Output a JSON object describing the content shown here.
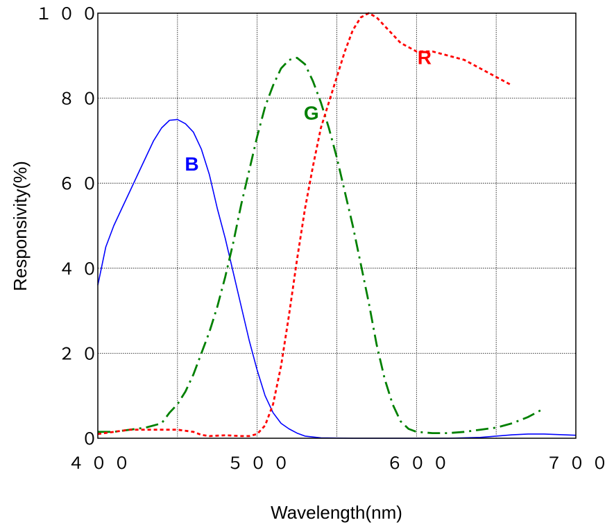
{
  "chart_data": {
    "type": "line",
    "title": "",
    "xlabel": "Wavelength(nm)",
    "ylabel": "Responsivity(%)",
    "xlim": [
      400,
      700
    ],
    "ylim": [
      0,
      100
    ],
    "x_ticks": [
      400,
      500,
      600,
      700
    ],
    "x_tick_labels": [
      "４００",
      "５００",
      "６００",
      "７００"
    ],
    "y_ticks": [
      0,
      20,
      40,
      60,
      80,
      100
    ],
    "y_tick_labels": [
      "０",
      "２０",
      "４０",
      "６０",
      "８０",
      "１００"
    ],
    "grid_x": [
      400,
      450,
      500,
      550,
      600,
      650,
      700
    ],
    "grid_y": [
      0,
      20,
      40,
      60,
      80,
      100
    ],
    "grid": true,
    "series": [
      {
        "name": "B",
        "color": "#0000ff",
        "dash": "solid",
        "label_at": [
          459,
          63
        ],
        "points": [
          [
            400,
            36
          ],
          [
            405,
            45
          ],
          [
            410,
            50
          ],
          [
            415,
            54
          ],
          [
            420,
            58
          ],
          [
            425,
            62
          ],
          [
            430,
            66
          ],
          [
            435,
            70
          ],
          [
            440,
            73
          ],
          [
            445,
            74.8
          ],
          [
            450,
            75
          ],
          [
            455,
            74
          ],
          [
            460,
            72
          ],
          [
            465,
            68
          ],
          [
            470,
            62
          ],
          [
            475,
            54
          ],
          [
            480,
            47
          ],
          [
            485,
            39
          ],
          [
            490,
            31
          ],
          [
            495,
            23
          ],
          [
            500,
            16
          ],
          [
            505,
            10
          ],
          [
            510,
            6
          ],
          [
            515,
            3.5
          ],
          [
            520,
            2.2
          ],
          [
            525,
            1.2
          ],
          [
            530,
            0.5
          ],
          [
            540,
            0.1
          ],
          [
            560,
            0
          ],
          [
            600,
            0
          ],
          [
            620,
            0
          ],
          [
            640,
            0.2
          ],
          [
            660,
            0.8
          ],
          [
            670,
            1
          ],
          [
            680,
            1
          ],
          [
            700,
            0.7
          ]
        ]
      },
      {
        "name": "G",
        "color": "#008000",
        "dash": "dashdot",
        "label_at": [
          534,
          75
        ],
        "points": [
          [
            400,
            1.5
          ],
          [
            410,
            1.5
          ],
          [
            420,
            2
          ],
          [
            430,
            2.5
          ],
          [
            440,
            3.5
          ],
          [
            445,
            6
          ],
          [
            450,
            8
          ],
          [
            455,
            11
          ],
          [
            460,
            15
          ],
          [
            465,
            20
          ],
          [
            470,
            25
          ],
          [
            475,
            31
          ],
          [
            480,
            38
          ],
          [
            485,
            46
          ],
          [
            490,
            55
          ],
          [
            495,
            63
          ],
          [
            500,
            71
          ],
          [
            505,
            78
          ],
          [
            510,
            83
          ],
          [
            515,
            87
          ],
          [
            520,
            89
          ],
          [
            525,
            89.5
          ],
          [
            530,
            88
          ],
          [
            535,
            84
          ],
          [
            540,
            79
          ],
          [
            545,
            73
          ],
          [
            550,
            66
          ],
          [
            555,
            58
          ],
          [
            560,
            50
          ],
          [
            565,
            41
          ],
          [
            570,
            32
          ],
          [
            575,
            22
          ],
          [
            580,
            14
          ],
          [
            585,
            8
          ],
          [
            590,
            4
          ],
          [
            595,
            2.2
          ],
          [
            600,
            1.5
          ],
          [
            610,
            1.2
          ],
          [
            620,
            1.2
          ],
          [
            630,
            1.5
          ],
          [
            640,
            2
          ],
          [
            650,
            2.5
          ],
          [
            660,
            3.5
          ],
          [
            670,
            5
          ],
          [
            680,
            7
          ]
        ]
      },
      {
        "name": "R",
        "color": "#ff0000",
        "dash": "dotted",
        "label_at": [
          605,
          88
        ],
        "points": [
          [
            400,
            1
          ],
          [
            410,
            1.5
          ],
          [
            420,
            2
          ],
          [
            430,
            2
          ],
          [
            440,
            2
          ],
          [
            450,
            2
          ],
          [
            460,
            1.5
          ],
          [
            465,
            0.8
          ],
          [
            470,
            0.5
          ],
          [
            480,
            0.7
          ],
          [
            490,
            0.5
          ],
          [
            495,
            0.5
          ],
          [
            500,
            1
          ],
          [
            505,
            3
          ],
          [
            510,
            8
          ],
          [
            515,
            17
          ],
          [
            520,
            29
          ],
          [
            525,
            42
          ],
          [
            530,
            54
          ],
          [
            535,
            64
          ],
          [
            540,
            73
          ],
          [
            545,
            79
          ],
          [
            550,
            85
          ],
          [
            555,
            91
          ],
          [
            560,
            96
          ],
          [
            565,
            99
          ],
          [
            570,
            100
          ],
          [
            575,
            99
          ],
          [
            580,
            97
          ],
          [
            585,
            95
          ],
          [
            590,
            93
          ],
          [
            595,
            92
          ],
          [
            600,
            91
          ],
          [
            610,
            91
          ],
          [
            620,
            90
          ],
          [
            630,
            89
          ],
          [
            640,
            87
          ],
          [
            650,
            85
          ],
          [
            660,
            83
          ]
        ]
      }
    ]
  }
}
